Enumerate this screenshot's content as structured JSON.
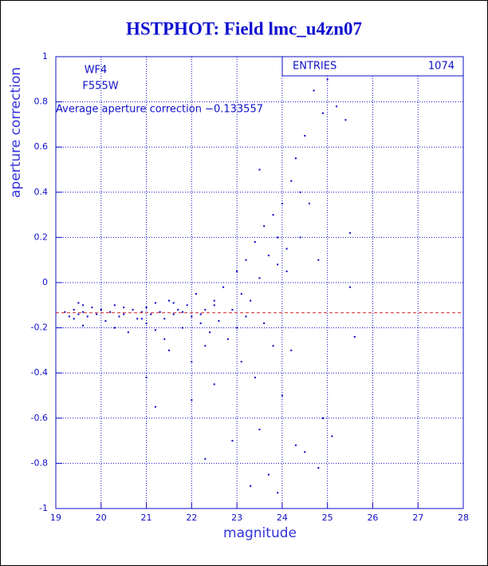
{
  "chart_data": {
    "type": "scatter",
    "title": "HSTPHOT: Field lmc_u4zn07",
    "x_label": "magnitude",
    "y_label": "aperture correction",
    "annotations": [
      "WF4",
      "F555W",
      "Average aperture correction −0.133557"
    ],
    "average_line": -0.133557,
    "average_line_color": "#cc2222",
    "stats": {
      "label": "ENTRIES",
      "value": 1074
    },
    "xlim": [
      19,
      28
    ],
    "ylim": [
      -1,
      1
    ],
    "xticks": [
      19,
      20,
      21,
      22,
      23,
      24,
      25,
      26,
      27,
      28
    ],
    "yticks": [
      -1,
      -0.8,
      -0.6,
      -0.4,
      -0.2,
      0,
      0.2,
      0.4,
      0.6,
      0.8,
      1
    ],
    "grid": true,
    "series": [
      {
        "color": "#0000cc",
        "x": [
          19.2,
          19.3,
          19.4,
          19.4,
          19.5,
          19.5,
          19.6,
          19.6,
          19.7,
          19.8,
          19.9,
          20.0,
          20.1,
          20.2,
          20.3,
          20.4,
          20.5,
          20.6,
          20.7,
          20.8,
          20.9,
          21.0,
          21.0,
          21.1,
          21.2,
          21.2,
          21.3,
          21.4,
          21.5,
          21.5,
          21.6,
          21.7,
          21.8,
          21.9,
          22.0,
          22.0,
          22.1,
          22.2,
          22.3,
          22.3,
          22.4,
          22.5,
          22.5,
          22.6,
          22.7,
          22.8,
          22.9,
          23.0,
          23.0,
          23.1,
          23.2,
          23.2,
          23.3,
          23.4,
          23.4,
          23.5,
          23.5,
          23.6,
          23.6,
          23.7,
          23.8,
          23.8,
          23.9,
          24.0,
          24.0,
          24.1,
          24.2,
          24.2,
          24.3,
          24.4,
          24.5,
          24.5,
          24.6,
          24.7,
          24.8,
          24.9,
          24.9,
          25.0,
          25.2,
          25.4,
          25.5,
          25.5,
          25.6,
          21.0,
          21.2,
          22.3,
          23.3,
          23.9,
          22.9,
          21.4,
          20.3,
          19.6,
          22.0,
          23.7,
          24.3,
          24.8,
          25.1,
          24.4,
          23.5,
          23.9,
          24.1,
          22.5,
          21.8,
          20.5,
          20.9,
          21.6,
          22.2,
          23.1
        ],
        "y": [
          -0.13,
          -0.15,
          -0.12,
          -0.16,
          -0.14,
          -0.09,
          -0.13,
          -0.19,
          -0.15,
          -0.11,
          -0.14,
          -0.12,
          -0.17,
          -0.13,
          -0.1,
          -0.15,
          -0.14,
          -0.22,
          -0.12,
          -0.16,
          -0.13,
          -0.11,
          -0.18,
          -0.14,
          -0.09,
          -0.21,
          -0.13,
          -0.16,
          -0.08,
          -0.3,
          -0.14,
          -0.12,
          -0.2,
          -0.1,
          -0.15,
          -0.35,
          -0.05,
          -0.18,
          -0.12,
          -0.28,
          -0.22,
          -0.08,
          -0.45,
          -0.17,
          -0.02,
          -0.25,
          -0.12,
          0.05,
          -0.2,
          -0.35,
          0.1,
          -0.15,
          -0.08,
          0.18,
          -0.42,
          0.02,
          -0.65,
          0.25,
          -0.18,
          0.12,
          -0.28,
          0.3,
          0.08,
          0.35,
          -0.5,
          0.15,
          0.45,
          -0.3,
          0.55,
          0.2,
          0.65,
          -0.75,
          0.35,
          0.85,
          0.1,
          0.75,
          -0.6,
          0.9,
          0.78,
          0.72,
          0.22,
          -0.02,
          -0.24,
          -0.42,
          -0.55,
          -0.78,
          -0.9,
          -0.93,
          -0.7,
          -0.25,
          -0.2,
          -0.1,
          -0.52,
          -0.85,
          -0.72,
          -0.82,
          -0.68,
          0.4,
          0.5,
          0.2,
          0.05,
          -0.1,
          -0.13,
          -0.11,
          -0.16,
          -0.09,
          -0.14,
          -0.05
        ]
      }
    ]
  }
}
